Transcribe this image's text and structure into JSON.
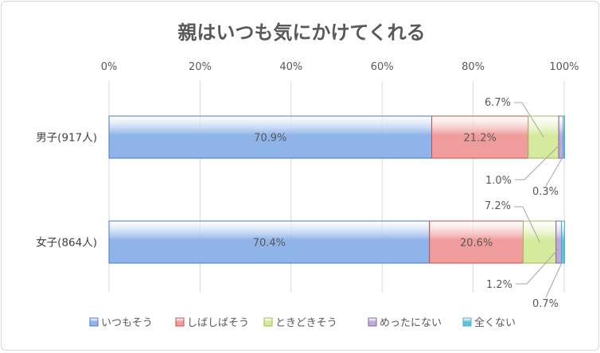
{
  "chart_data": {
    "type": "bar",
    "orientation": "horizontal",
    "stacked": "percent",
    "title": "親はいつも気にかけてくれる",
    "categories": [
      "男子(917人)",
      "女子(864人)"
    ],
    "series": [
      {
        "name": "いつもそう",
        "values": [
          70.9,
          70.4
        ],
        "color": "#8fb4ea"
      },
      {
        "name": "しばしばそう",
        "values": [
          21.2,
          20.6
        ],
        "color": "#f19c9c"
      },
      {
        "name": "ときどきそう",
        "values": [
          6.7,
          7.2
        ],
        "color": "#d6ea9e"
      },
      {
        "name": "めったにない",
        "values": [
          1.0,
          1.2
        ],
        "color": "#bfa9d8"
      },
      {
        "name": "全くない",
        "values": [
          0.3,
          0.7
        ],
        "color": "#63c1dc"
      }
    ],
    "data_labels": [
      [
        "70.9%",
        "21.2%",
        "6.7%",
        "1.0%",
        "0.3%"
      ],
      [
        "70.4%",
        "20.6%",
        "7.2%",
        "1.2%",
        "0.7%"
      ]
    ],
    "xlim": [
      0,
      100
    ],
    "xticks": [
      "0%",
      "20%",
      "40%",
      "60%",
      "80%",
      "100%"
    ],
    "grid": true,
    "legend_position": "bottom",
    "border_colors": [
      "#4a78c8",
      "#c0504d",
      "#9bbb59",
      "#8064a2",
      "#4bacc6"
    ]
  }
}
